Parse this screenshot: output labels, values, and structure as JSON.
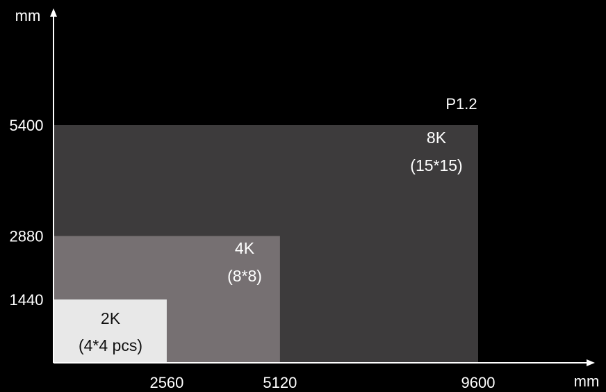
{
  "chart_data": {
    "type": "area",
    "title": "",
    "xlabel": "mm",
    "ylabel": "mm",
    "xlim": [
      0,
      9600
    ],
    "ylim": [
      0,
      5400
    ],
    "grid": false,
    "x_ticks": [
      2560,
      5120,
      9600
    ],
    "y_ticks": [
      1440,
      2880,
      5400
    ],
    "x_tick_labels": [
      "2560",
      "5120",
      "9600"
    ],
    "y_tick_labels": [
      "1440",
      "2880",
      "5400"
    ],
    "annotation": "P1.2",
    "series": [
      {
        "name": "8K",
        "label_line1": "8K",
        "label_line2": "(15*15)",
        "width": 9600,
        "height": 5400,
        "color": "#3d3b3c"
      },
      {
        "name": "4K",
        "label_line1": "4K",
        "label_line2": "(8*8)",
        "width": 5120,
        "height": 2880,
        "color": "#767072"
      },
      {
        "name": "2K",
        "label_line1": "2K",
        "label_line2": "(4*4 pcs)",
        "width": 2560,
        "height": 1440,
        "color": "#e8e8e8"
      }
    ],
    "colors": {
      "background": "#000000",
      "axis": "#ffffff",
      "text_light": "#ffffff",
      "text_dark": "#111111"
    }
  }
}
